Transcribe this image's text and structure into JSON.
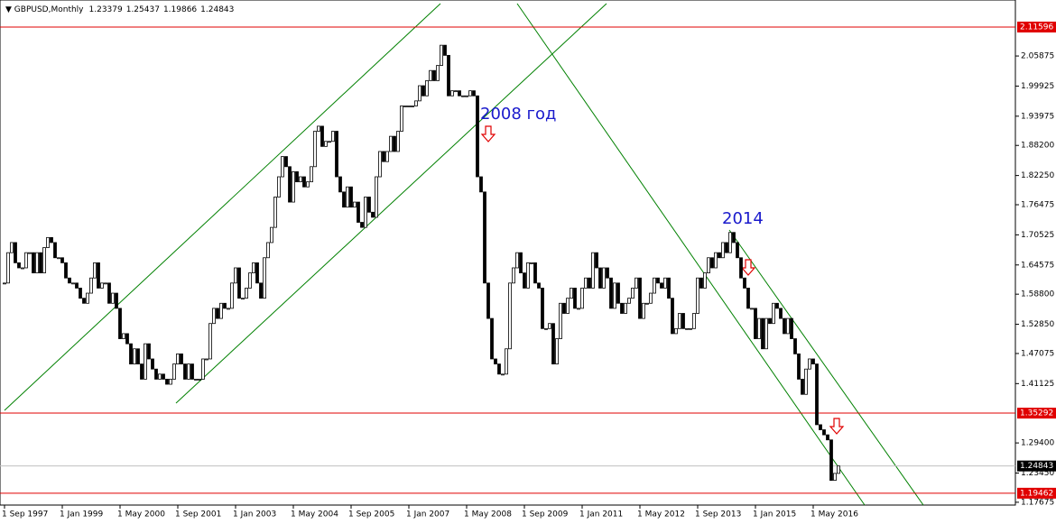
{
  "chart_data": {
    "type": "candlestick",
    "symbol": "GBPUSD,Monthly",
    "header_values": [
      1.23379,
      1.25437,
      1.19866,
      1.24843
    ],
    "annotations": [
      "2008 год",
      "2014"
    ],
    "ylim": [
      1.1712,
      2.1694
    ],
    "yticks": [
      2.05875,
      1.99925,
      1.93975,
      {
        "value": 1.882,
        "label": "1.88200"
      },
      {
        "value": 1.8225,
        "label": "1.82250"
      },
      1.76475,
      1.70525,
      1.64575,
      {
        "value": 1.588,
        "label": "1.58800"
      },
      {
        "value": 1.5285,
        "label": "1.52850"
      },
      1.47075,
      1.41125,
      {
        "value": 1.294,
        "label": "1.29400"
      },
      {
        "value": 1.2345,
        "label": "1.23450"
      },
      1.17675
    ],
    "levels": [
      2.11596,
      1.35292,
      1.19462
    ],
    "level_color": "#e00000",
    "current_price": 1.24843,
    "xticks": [
      {
        "value": 0,
        "label": "1 Sep 1997"
      },
      {
        "value": 16,
        "label": "1 Jan 1999"
      },
      {
        "value": 32,
        "label": "1 May 2000"
      },
      {
        "value": 48,
        "label": "1 Sep 2001"
      },
      {
        "value": 64,
        "label": "1 Jan 2003"
      },
      {
        "value": 80,
        "label": "1 May 2004"
      },
      {
        "value": 96,
        "label": "1 Sep 2005"
      },
      {
        "value": 112,
        "label": "1 Jan 2007"
      },
      {
        "value": 128,
        "label": "1 May 2008"
      },
      {
        "value": 144,
        "label": "1 Sep 2009"
      },
      {
        "value": 160,
        "label": "1 Jan 2011"
      },
      {
        "value": 176,
        "label": "1 May 2012"
      },
      {
        "value": 192,
        "label": "1 Sep 2013"
      },
      {
        "value": 208,
        "label": "1 Jan 2015"
      },
      {
        "value": 224,
        "label": "1 May 2016"
      }
    ],
    "close": [
      1.61,
      1.67,
      1.69,
      1.65,
      1.64,
      1.64,
      1.67,
      1.67,
      1.63,
      1.67,
      1.63,
      1.68,
      1.7,
      1.69,
      1.66,
      1.66,
      1.65,
      1.62,
      1.61,
      1.61,
      1.6,
      1.58,
      1.57,
      1.59,
      1.62,
      1.65,
      1.6,
      1.61,
      1.61,
      1.57,
      1.59,
      1.56,
      1.5,
      1.51,
      1.49,
      1.45,
      1.48,
      1.45,
      1.42,
      1.49,
      1.46,
      1.44,
      1.42,
      1.43,
      1.42,
      1.41,
      1.42,
      1.45,
      1.47,
      1.45,
      1.42,
      1.45,
      1.42,
      1.42,
      1.42,
      1.46,
      1.46,
      1.53,
      1.56,
      1.54,
      1.57,
      1.56,
      1.56,
      1.61,
      1.64,
      1.58,
      1.58,
      1.6,
      1.63,
      1.65,
      1.61,
      1.58,
      1.66,
      1.69,
      1.72,
      1.78,
      1.82,
      1.86,
      1.84,
      1.77,
      1.83,
      1.81,
      1.82,
      1.8,
      1.81,
      1.84,
      1.91,
      1.92,
      1.88,
      1.89,
      1.89,
      1.91,
      1.82,
      1.79,
      1.76,
      1.8,
      1.76,
      1.77,
      1.73,
      1.72,
      1.78,
      1.75,
      1.74,
      1.82,
      1.87,
      1.85,
      1.87,
      1.9,
      1.87,
      1.91,
      1.96,
      1.96,
      1.96,
      1.96,
      1.97,
      2.0,
      1.98,
      2.01,
      2.03,
      2.01,
      2.04,
      2.08,
      2.06,
      1.98,
      1.99,
      1.99,
      1.98,
      1.98,
      1.98,
      1.99,
      1.98,
      1.82,
      1.79,
      1.61,
      1.54,
      1.46,
      1.45,
      1.43,
      1.43,
      1.48,
      1.61,
      1.64,
      1.67,
      1.63,
      1.6,
      1.65,
      1.65,
      1.61,
      1.6,
      1.52,
      1.52,
      1.53,
      1.45,
      1.5,
      1.57,
      1.55,
      1.58,
      1.6,
      1.56,
      1.56,
      1.6,
      1.62,
      1.6,
      1.67,
      1.64,
      1.6,
      1.64,
      1.62,
      1.56,
      1.61,
      1.57,
      1.55,
      1.57,
      1.58,
      1.6,
      1.62,
      1.54,
      1.57,
      1.57,
      1.59,
      1.62,
      1.61,
      1.6,
      1.62,
      1.58,
      1.51,
      1.52,
      1.55,
      1.52,
      1.52,
      1.52,
      1.55,
      1.62,
      1.6,
      1.63,
      1.66,
      1.64,
      1.67,
      1.66,
      1.69,
      1.67,
      1.71,
      1.69,
      1.66,
      1.62,
      1.6,
      1.56,
      1.56,
      1.5,
      1.54,
      1.48,
      1.54,
      1.53,
      1.57,
      1.56,
      1.54,
      1.51,
      1.54,
      1.5,
      1.47,
      1.42,
      1.39,
      1.44,
      1.46,
      1.45,
      1.33,
      1.32,
      1.31,
      1.3,
      1.22,
      1.23379,
      1.24843
    ]
  }
}
